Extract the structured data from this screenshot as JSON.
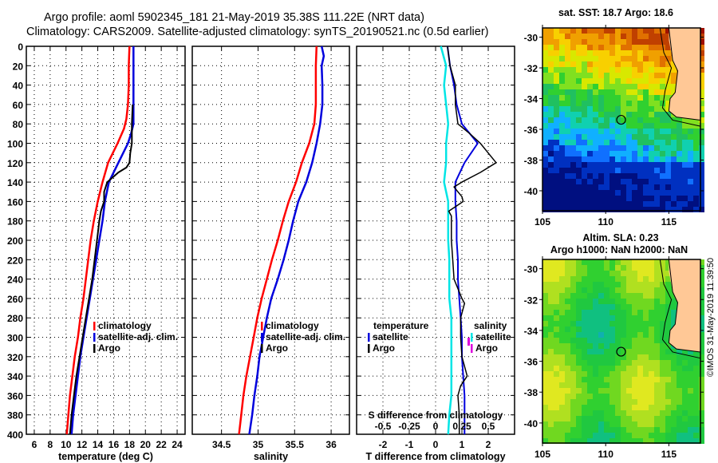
{
  "title_line1": "Argo profile: aoml 5902345_181 21-May-2019 35.38S 111.22E (NRT data)",
  "title_line2": "Climatology: CARS2009. Satellite-adjusted climatology: synTS_20190521.nc (0.5d earlier)",
  "copyright": "©IMOS 31-May-2019 11:39:50",
  "colors": {
    "climatology": "#ff0000",
    "satellite": "#0000dd",
    "argo": "#000000",
    "t_sat_diff": "#00e5e5",
    "s_argo": "#dd00dd",
    "land": "#ffc896",
    "frame": "#000000"
  },
  "chart_data": [
    {
      "type": "line",
      "id": "temperature",
      "xlabel": "temperature (deg C)",
      "ylabel": "",
      "xlim": [
        5,
        25
      ],
      "ylim": [
        400,
        0
      ],
      "grid": true,
      "xticks": [
        6,
        8,
        10,
        12,
        14,
        16,
        18,
        20,
        22,
        24
      ],
      "yticks": [
        0,
        20,
        40,
        60,
        80,
        100,
        120,
        140,
        160,
        180,
        200,
        220,
        240,
        260,
        280,
        300,
        320,
        340,
        360,
        380,
        400
      ],
      "legend": {
        "placement": "middle-right",
        "entries": [
          "climatology",
          "satellite-adj. clim.",
          "Argo"
        ]
      },
      "series": [
        {
          "name": "climatology",
          "depth": [
            0,
            20,
            40,
            60,
            75,
            85,
            100,
            120,
            140,
            160,
            180,
            200,
            220,
            240,
            260,
            280,
            300,
            320,
            340,
            360,
            380,
            400
          ],
          "values": [
            18.0,
            17.9,
            17.9,
            17.8,
            17.6,
            17.3,
            16.5,
            15.3,
            14.6,
            14.0,
            13.5,
            13.1,
            12.8,
            12.5,
            12.2,
            11.8,
            11.5,
            11.1,
            10.8,
            10.5,
            10.3,
            10.1
          ]
        },
        {
          "name": "satellite-adj. clim.",
          "depth": [
            0,
            20,
            40,
            60,
            80,
            90,
            100,
            120,
            140,
            160,
            180,
            200,
            220,
            240,
            260,
            280,
            300,
            320,
            340,
            360,
            380,
            400
          ],
          "values": [
            18.5,
            18.5,
            18.5,
            18.5,
            18.5,
            18.2,
            17.8,
            16.6,
            15.4,
            14.9,
            14.6,
            14.2,
            13.8,
            13.4,
            13.0,
            12.6,
            12.2,
            11.8,
            11.5,
            11.2,
            10.9,
            10.7
          ]
        },
        {
          "name": "Argo",
          "depth": [
            60,
            80,
            100,
            110,
            120,
            125,
            130,
            140,
            150,
            160,
            170,
            180,
            200,
            220,
            240,
            260,
            280,
            300,
            320,
            340,
            360,
            380,
            400
          ],
          "values": [
            18.4,
            18.3,
            18.3,
            18.1,
            18.0,
            17.6,
            16.6,
            15.2,
            14.8,
            14.8,
            14.4,
            14.2,
            13.9,
            13.6,
            13.3,
            12.9,
            12.5,
            12.1,
            11.7,
            11.3,
            11.0,
            10.7,
            10.5
          ]
        }
      ]
    },
    {
      "type": "line",
      "id": "salinity",
      "xlabel": "salinity",
      "ylabel": "",
      "xlim": [
        34.1,
        36.25
      ],
      "ylim": [
        400,
        0
      ],
      "grid": true,
      "xticks": [
        34.5,
        35,
        35.5,
        36
      ],
      "legend": {
        "placement": "middle-right",
        "entries": [
          "climatology",
          "satellite-adj. clim.",
          "Argo"
        ]
      },
      "series": [
        {
          "name": "climatology",
          "depth": [
            0,
            20,
            40,
            60,
            80,
            100,
            120,
            140,
            160,
            180,
            200,
            220,
            240,
            260,
            280,
            300,
            320,
            340,
            360,
            380,
            400
          ],
          "values": [
            35.8,
            35.79,
            35.79,
            35.79,
            35.77,
            35.7,
            35.6,
            35.52,
            35.42,
            35.34,
            35.27,
            35.19,
            35.12,
            35.05,
            34.99,
            34.94,
            34.89,
            34.84,
            34.8,
            34.77,
            34.74
          ]
        },
        {
          "name": "satellite-adj. clim.",
          "depth": [
            0,
            10,
            20,
            40,
            60,
            80,
            100,
            120,
            140,
            160,
            180,
            200,
            220,
            240,
            260,
            280,
            300,
            320,
            340,
            360,
            380,
            400
          ],
          "values": [
            35.87,
            35.9,
            35.87,
            35.88,
            35.88,
            35.85,
            35.8,
            35.74,
            35.66,
            35.55,
            35.48,
            35.42,
            35.35,
            35.27,
            35.18,
            35.12,
            35.07,
            35.02,
            34.99,
            34.95,
            34.92,
            34.88
          ]
        }
      ]
    },
    {
      "type": "line",
      "id": "difference",
      "xlabel": "T difference from climatology",
      "xlabel_top": "S difference from climatology",
      "xlim": [
        -3,
        3
      ],
      "xlim_s": [
        -0.75,
        0.75
      ],
      "ylim": [
        400,
        0
      ],
      "grid": true,
      "xticks": [
        -2,
        -1,
        0,
        1,
        2
      ],
      "xticks_s": [
        -0.5,
        -0.25,
        0,
        0.25,
        0.5
      ],
      "xticklabels_s": [
        "-0.5",
        "-0.25",
        "0",
        "0.25",
        "0.5"
      ],
      "legend_temperature": {
        "heading": "temperature",
        "entries": [
          "satellite",
          "Argo"
        ]
      },
      "legend_salinity": {
        "heading": "salinity",
        "entries": [
          "satellite",
          "Argo"
        ]
      },
      "series": [
        {
          "name": "T satellite",
          "depth": [
            0,
            20,
            40,
            60,
            80,
            100,
            120,
            140,
            160,
            180,
            200,
            220,
            240,
            260,
            280,
            300,
            320,
            340,
            360,
            380,
            400
          ],
          "values": [
            0.45,
            0.55,
            0.7,
            0.8,
            1.0,
            1.6,
            1.1,
            0.75,
            0.75,
            0.8,
            0.8,
            0.85,
            0.85,
            0.9,
            0.95,
            1.0,
            1.0,
            1.05,
            1.1,
            1.1,
            1.1
          ]
        },
        {
          "name": "T Argo",
          "depth": [
            0,
            20,
            40,
            60,
            80,
            90,
            100,
            110,
            120,
            130,
            140,
            145,
            150,
            155,
            160,
            170,
            175,
            180,
            190,
            200,
            220,
            240,
            260,
            265,
            280,
            300,
            320,
            330,
            340,
            350,
            360,
            380,
            400
          ],
          "values": [
            0.45,
            0.55,
            0.75,
            0.75,
            0.85,
            1.3,
            1.7,
            2.0,
            2.3,
            1.7,
            1.0,
            0.7,
            0.85,
            1.0,
            1.05,
            0.5,
            0.6,
            0.6,
            0.6,
            0.6,
            0.65,
            0.7,
            1.0,
            1.1,
            0.95,
            0.95,
            1.0,
            1.1,
            1.2,
            0.95,
            0.85,
            0.9,
            0.9
          ]
        },
        {
          "name": "S satellite",
          "depth": [
            0,
            20,
            40,
            60,
            80,
            100,
            120,
            140,
            160,
            180,
            200,
            220,
            240,
            260,
            280,
            300,
            320,
            340,
            360,
            380,
            400
          ],
          "values": [
            0.05,
            0.1,
            0.08,
            0.1,
            0.12,
            0.1,
            0.1,
            0.08,
            0.12,
            0.12,
            0.12,
            0.13,
            0.13,
            0.13,
            0.15,
            0.15,
            0.15,
            0.15,
            0.15,
            0.13,
            0.12
          ]
        }
      ]
    },
    {
      "type": "heatmap",
      "id": "sst_map",
      "title": "sat. SST: 18.7 Argo: 18.6",
      "xlim": [
        105,
        117.5
      ],
      "ylim": [
        -41.3,
        -29.4
      ],
      "xticks": [
        105,
        110,
        115
      ],
      "yticks": [
        -30,
        -32,
        -34,
        -36,
        -38,
        -40
      ],
      "marker": {
        "lon": 111.22,
        "lat": -35.38
      }
    },
    {
      "type": "heatmap",
      "id": "sla_map",
      "title": "Altim. SLA: 0.23",
      "subtitle": "Argo h1000: NaN h2000: NaN",
      "xlim": [
        105,
        117.5
      ],
      "ylim": [
        -41.3,
        -29.4
      ],
      "xticks": [
        105,
        110,
        115
      ],
      "yticks": [
        -30,
        -32,
        -34,
        -36,
        -38,
        -40
      ],
      "marker": {
        "lon": 111.22,
        "lat": -35.38
      }
    }
  ]
}
